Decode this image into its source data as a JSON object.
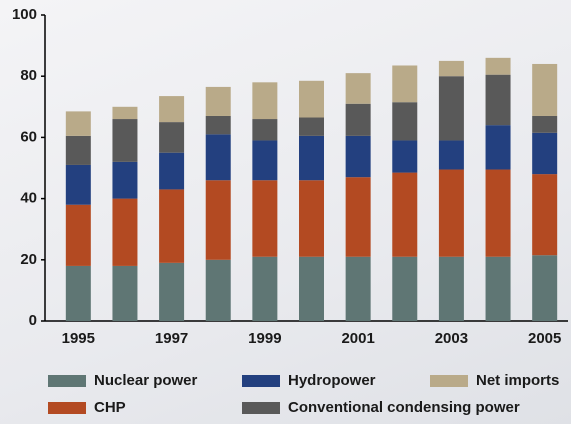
{
  "chart_data": {
    "type": "stacked_bar",
    "categories": [
      "1995",
      null,
      "1997",
      null,
      "1999",
      null,
      "2001",
      null,
      "2003",
      null,
      "2005"
    ],
    "series": [
      {
        "name": "Nuclear power",
        "color": "#5f7674",
        "values": [
          18,
          18,
          19,
          20,
          21,
          21,
          21,
          21,
          21,
          21,
          21.5
        ]
      },
      {
        "name": "CHP",
        "color": "#b34a22",
        "values": [
          20,
          22,
          24,
          26,
          25,
          25,
          26,
          27.5,
          28.5,
          28.5,
          26.5
        ]
      },
      {
        "name": "Hydropower",
        "color": "#23407f",
        "values": [
          13,
          12,
          12,
          15,
          13,
          14.5,
          13.5,
          10.5,
          9.5,
          14.5,
          13.5
        ]
      },
      {
        "name": "Conventional condensing power",
        "color": "#595959",
        "values": [
          9.5,
          14,
          10,
          6,
          7,
          6,
          10.5,
          12.5,
          21,
          16.5,
          5.5
        ]
      },
      {
        "name": "Net imports",
        "color": "#b9aa89",
        "values": [
          8,
          4,
          8.5,
          9.5,
          12,
          12,
          10,
          12,
          5,
          5.5,
          17
        ]
      }
    ],
    "ylim": [
      0,
      100
    ],
    "yticks": [
      0,
      20,
      40,
      60,
      80,
      100
    ],
    "grid": false
  }
}
